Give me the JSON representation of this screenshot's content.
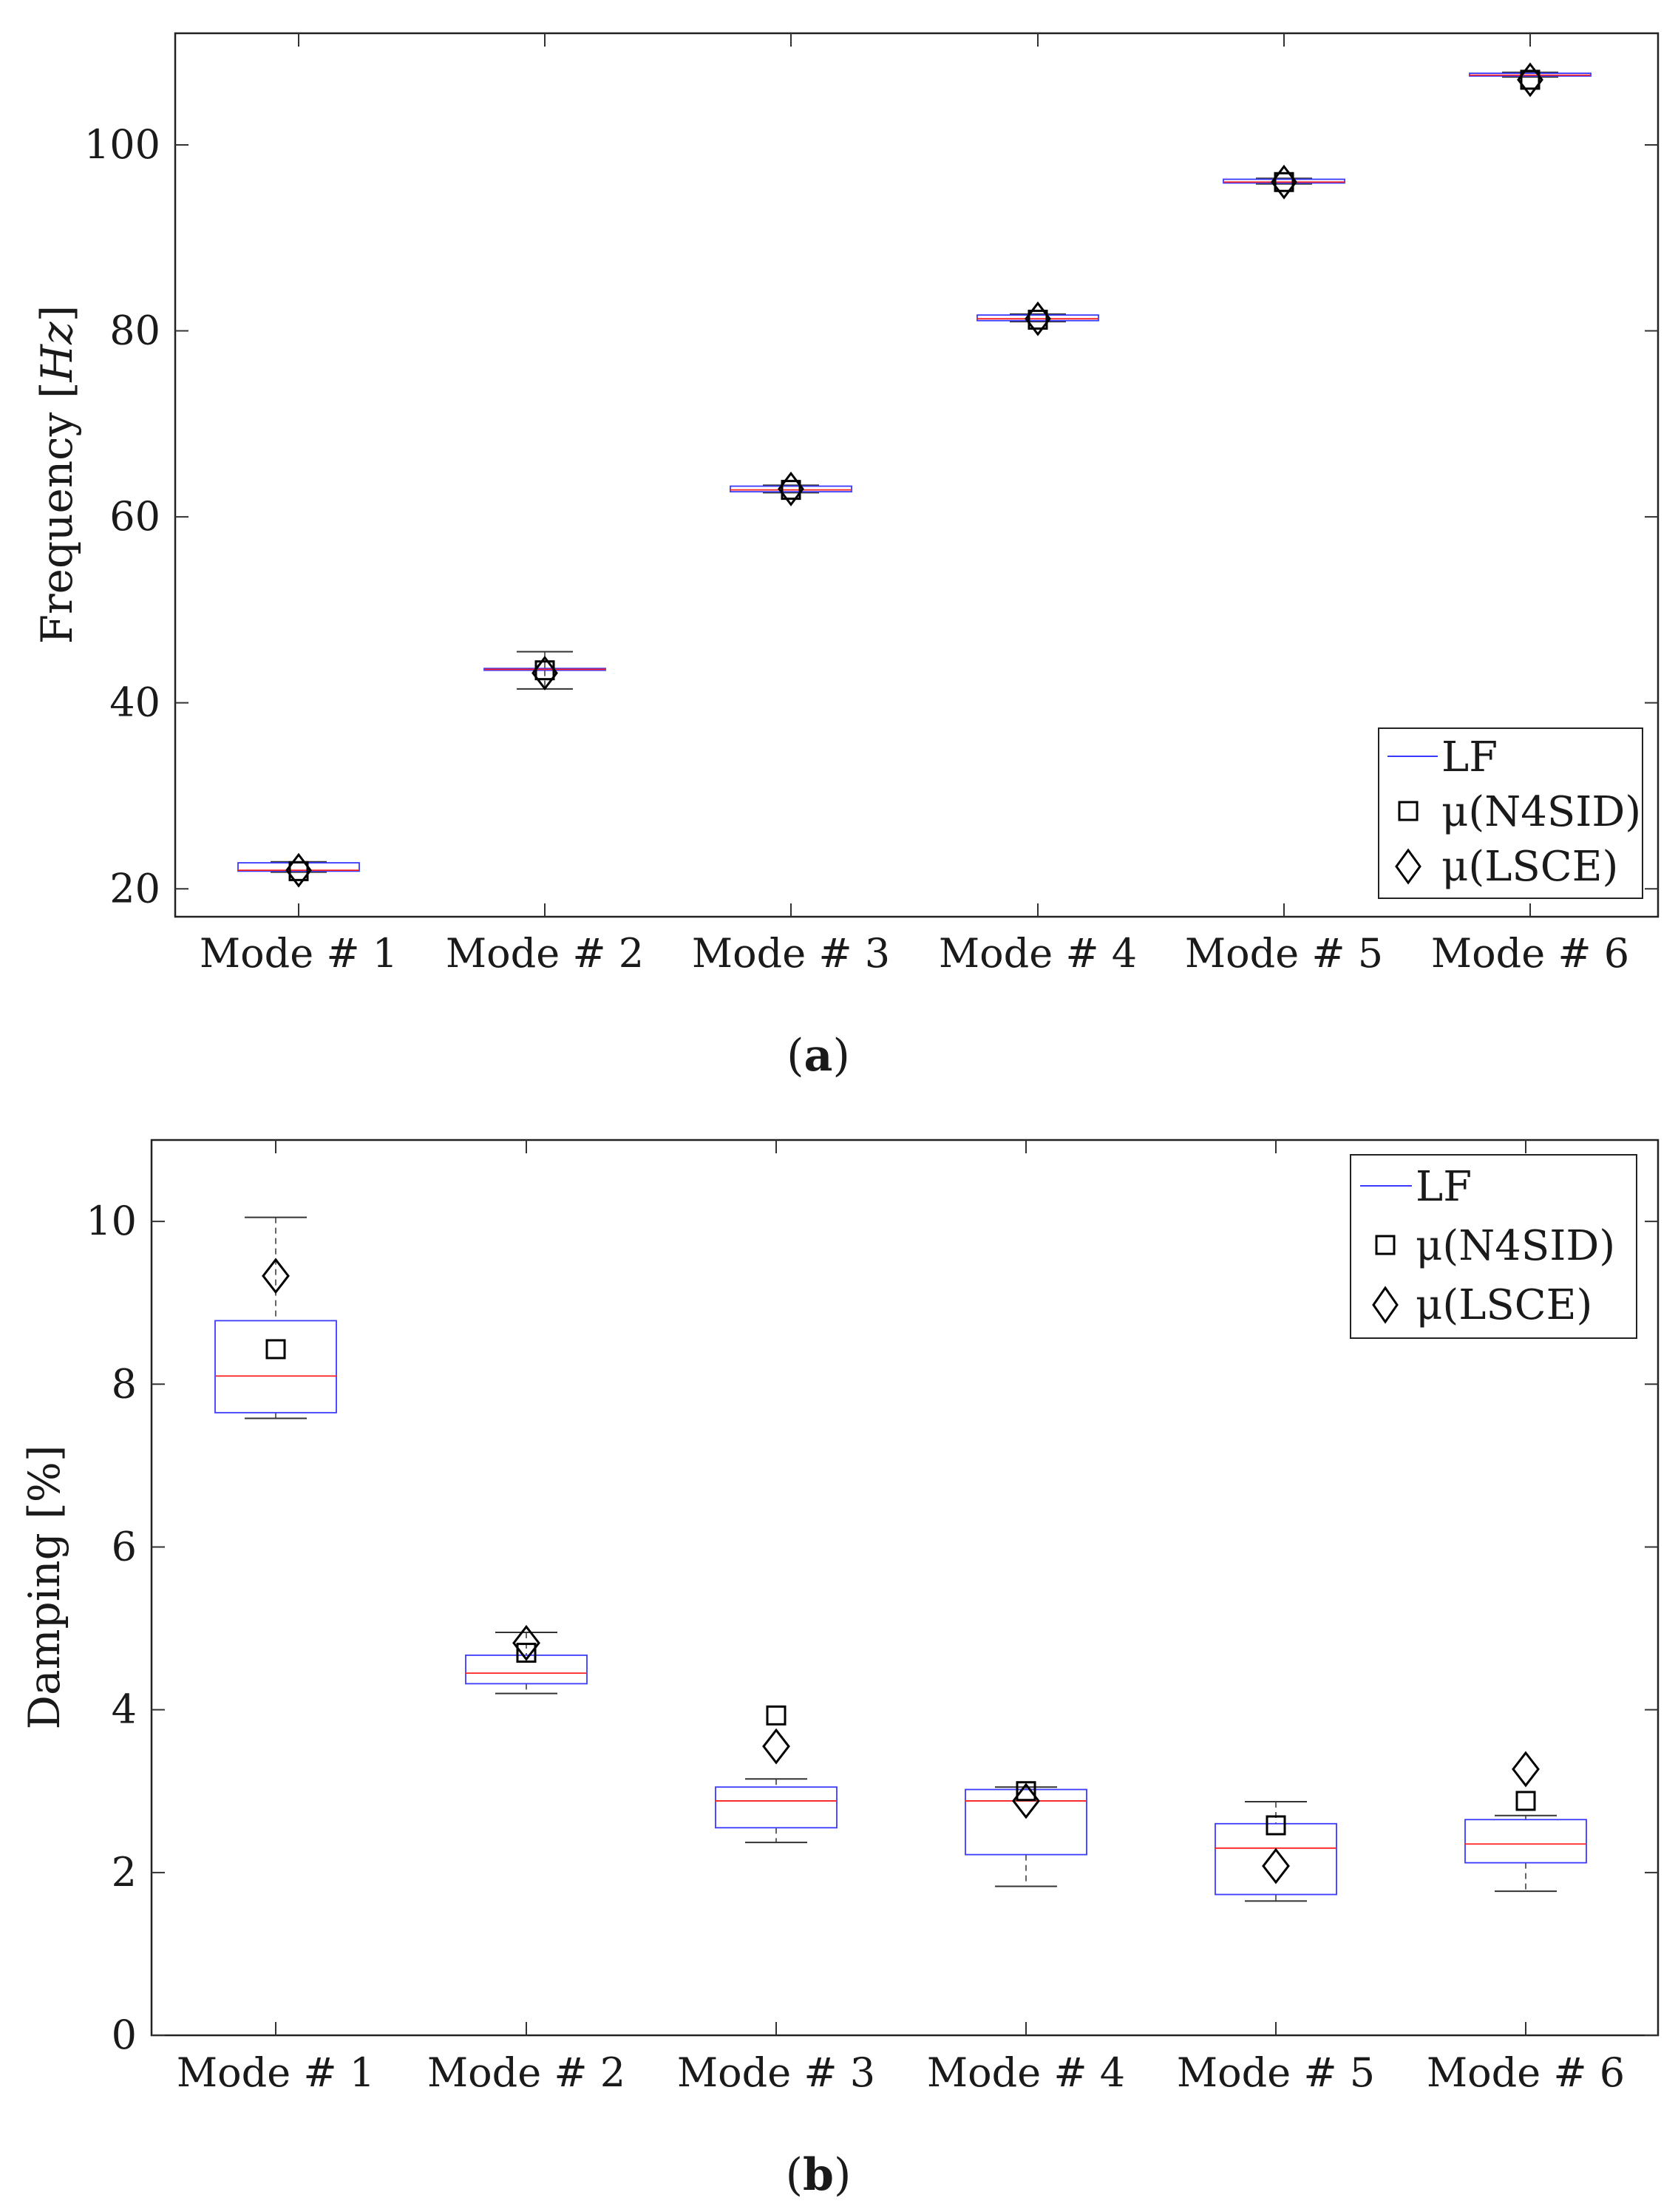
{
  "colors": {
    "box": "#3a3aff",
    "median": "#ff2020",
    "whisker": "#333333",
    "marker": "#000000",
    "axis": "#222222",
    "grid_tick": "#333333"
  },
  "chart_data": [
    {
      "type": "box",
      "caption": "(a)",
      "caption_letter": "a",
      "xlabel": "",
      "ylabel": "Frequency [Hz]",
      "ylabel_prefix": "Frequency ",
      "ylabel_unit": "Hz",
      "ylim": [
        17,
        112
      ],
      "yticks": [
        20,
        40,
        60,
        80,
        100
      ],
      "categories": [
        "Mode # 1",
        "Mode # 2",
        "Mode # 3",
        "Mode # 4",
        "Mode # 5",
        "Mode # 6"
      ],
      "legend_position": "bottom-right",
      "legend": [
        "LF",
        "μ(N4SID)",
        "μ(LSCE)"
      ],
      "series": [
        {
          "name": "LF",
          "boxes": [
            {
              "whisker_low": 21.8,
              "q1": 21.9,
              "median": 22.0,
              "q3": 22.8,
              "whisker_high": 22.9
            },
            {
              "whisker_low": 41.5,
              "q1": 43.5,
              "median": 43.6,
              "q3": 43.7,
              "whisker_high": 45.5
            },
            {
              "whisker_low": 62.6,
              "q1": 62.7,
              "median": 62.9,
              "q3": 63.3,
              "whisker_high": 63.4
            },
            {
              "whisker_low": 81.0,
              "q1": 81.1,
              "median": 81.3,
              "q3": 81.7,
              "whisker_high": 81.8
            },
            {
              "whisker_low": 95.8,
              "q1": 95.9,
              "median": 96.0,
              "q3": 96.3,
              "whisker_high": 96.4
            },
            {
              "whisker_low": 107.3,
              "q1": 107.4,
              "median": 107.5,
              "q3": 107.7,
              "whisker_high": 107.8
            }
          ]
        },
        {
          "name": "μ(N4SID)",
          "values": [
            21.9,
            43.5,
            62.9,
            81.2,
            96.0,
            107.0
          ]
        },
        {
          "name": "μ(LSCE)",
          "values": [
            22.0,
            43.2,
            63.0,
            81.3,
            96.0,
            107.0
          ]
        }
      ]
    },
    {
      "type": "box",
      "caption": "(b)",
      "caption_letter": "b",
      "xlabel": "",
      "ylabel": "Damping [%]",
      "ylim": [
        0,
        11
      ],
      "yticks": [
        0,
        2,
        4,
        6,
        8,
        10
      ],
      "categories": [
        "Mode # 1",
        "Mode # 2",
        "Mode # 3",
        "Mode # 4",
        "Mode # 5",
        "Mode # 6"
      ],
      "legend_position": "top-right",
      "legend": [
        "LF",
        "μ(N4SID)",
        "μ(LSCE)"
      ],
      "series": [
        {
          "name": "LF",
          "boxes": [
            {
              "whisker_low": 7.58,
              "q1": 7.65,
              "median": 8.1,
              "q3": 8.78,
              "whisker_high": 10.05
            },
            {
              "whisker_low": 4.2,
              "q1": 4.32,
              "median": 4.45,
              "q3": 4.67,
              "whisker_high": 4.95
            },
            {
              "whisker_low": 2.37,
              "q1": 2.55,
              "median": 2.88,
              "q3": 3.05,
              "whisker_high": 3.15
            },
            {
              "whisker_low": 1.83,
              "q1": 2.22,
              "median": 2.88,
              "q3": 3.02,
              "whisker_high": 3.05
            },
            {
              "whisker_low": 1.65,
              "q1": 1.73,
              "median": 2.3,
              "q3": 2.6,
              "whisker_high": 2.87
            },
            {
              "whisker_low": 1.77,
              "q1": 2.12,
              "median": 2.35,
              "q3": 2.65,
              "whisker_high": 2.7
            }
          ]
        },
        {
          "name": "μ(N4SID)",
          "values": [
            8.43,
            4.7,
            3.93,
            3.0,
            2.58,
            2.88
          ]
        },
        {
          "name": "μ(LSCE)",
          "values": [
            9.33,
            4.82,
            3.55,
            2.88,
            2.08,
            3.27
          ]
        }
      ]
    }
  ]
}
